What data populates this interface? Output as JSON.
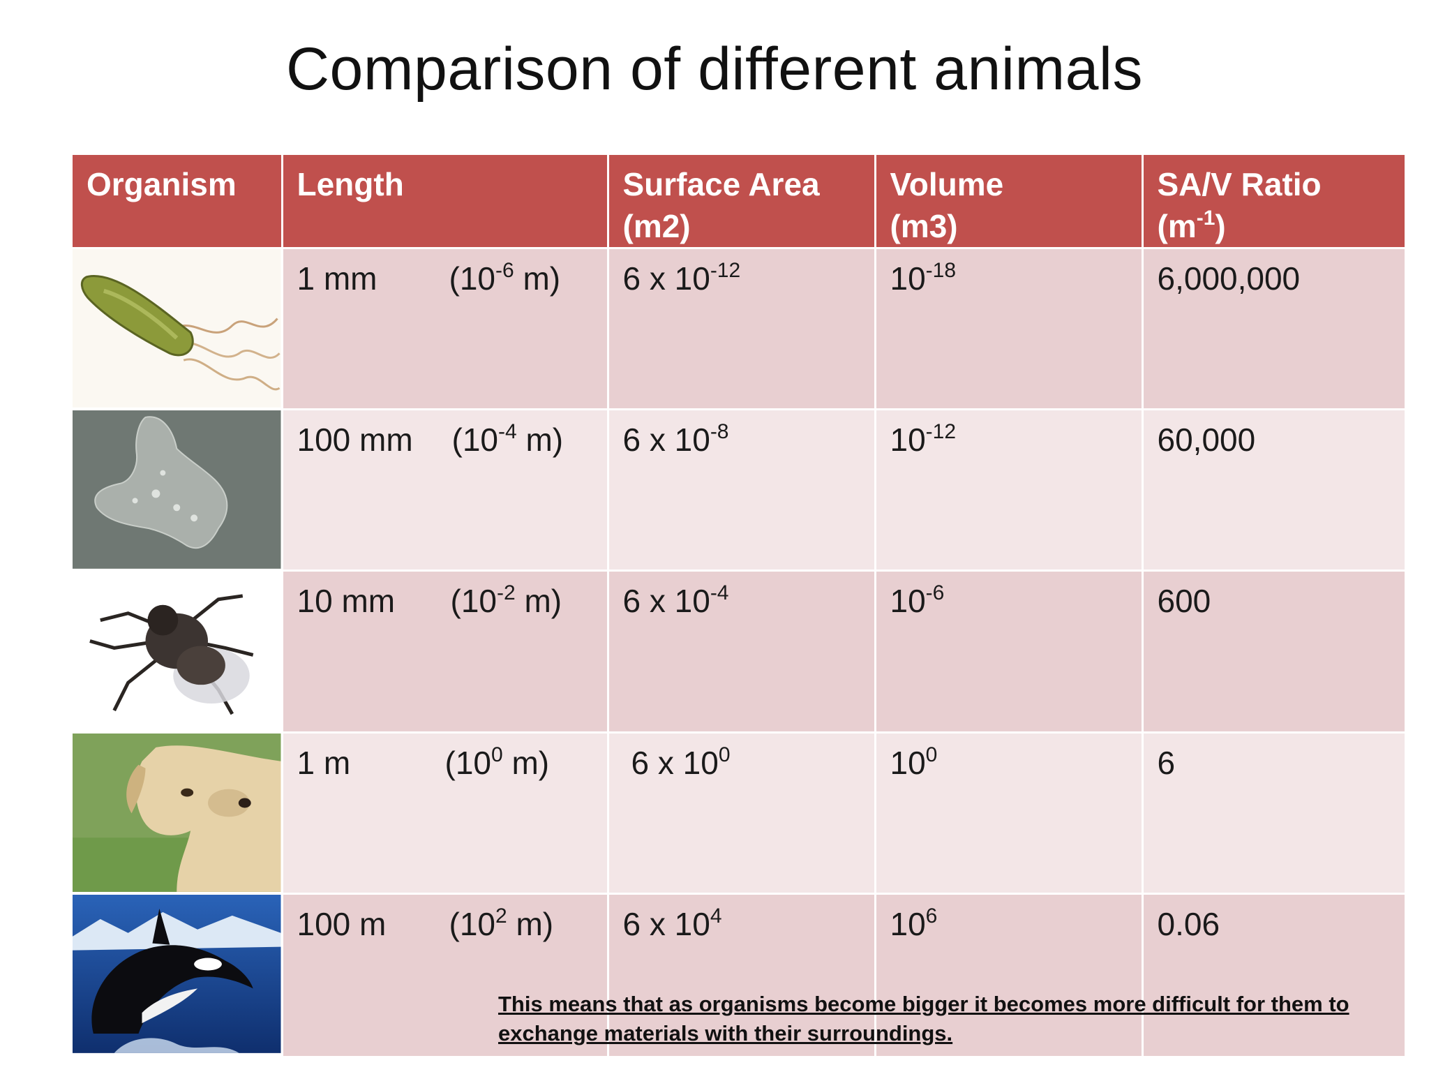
{
  "title": "Comparison of different animals",
  "headers": {
    "organism": "Organism",
    "length": "Length",
    "surface_area": [
      "Surface Area",
      "(m2)"
    ],
    "volume": [
      "Volume",
      "(m3)"
    ],
    "ratio": [
      "SA/V Ratio",
      "(m",
      "-1",
      ")"
    ]
  },
  "rows": [
    {
      "image": "bacterium-icon",
      "length": "1 mm",
      "len_base": "(10",
      "len_exp": "-6",
      "len_unit": " m)",
      "sa_base": "6 x 10",
      "sa_exp": "-12",
      "vol_base": "10",
      "vol_exp": "-18",
      "ratio": "6,000,000"
    },
    {
      "image": "amoeba-icon",
      "length": "100 mm",
      "len_base": "(10",
      "len_exp": "-4",
      "len_unit": " m)",
      "sa_base": "6 x 10",
      "sa_exp": "-8",
      "vol_base": "10",
      "vol_exp": "-12",
      "ratio": "60,000"
    },
    {
      "image": "fly-icon",
      "length": "10 mm",
      "len_base": "(10",
      "len_exp": "-2",
      "len_unit": " m)",
      "sa_base": "6 x 10",
      "sa_exp": "-4",
      "vol_base": "10",
      "vol_exp": "-6",
      "ratio": "600"
    },
    {
      "image": "dog-icon",
      "length": "1 m",
      "len_base": "(10",
      "len_exp": "0",
      "len_unit": " m)",
      "sa_base": "6 x 10",
      "sa_exp": "0",
      "vol_base": "10",
      "vol_exp": "0",
      "ratio": "6"
    },
    {
      "image": "orca-icon",
      "length": "100 m",
      "len_base": "(10",
      "len_exp": "2",
      "len_unit": " m)",
      "sa_base": "6 x 10",
      "sa_exp": "4",
      "vol_base": "10",
      "vol_exp": "6",
      "ratio": "0.06"
    }
  ],
  "note": "This means that as organisms become bigger it becomes more difficult for them to exchange materials with their surroundings.",
  "colors": {
    "header": "#c0504d",
    "row_dark": "#e8cfd1",
    "row_light": "#f3e6e7"
  }
}
